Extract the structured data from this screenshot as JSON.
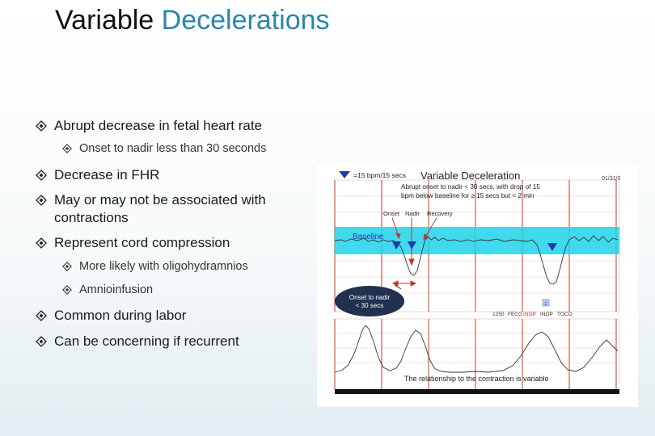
{
  "slide": {
    "title_part1": "Variable ",
    "title_part2": "Decelerations",
    "bullets": [
      {
        "level": 1,
        "text": "Abrupt decrease in fetal heart rate"
      },
      {
        "level": 2,
        "text": "Onset to nadir less than 30 seconds"
      },
      {
        "level": 1,
        "text": "Decrease in FHR"
      },
      {
        "level": 1,
        "text": "May or may not be associated with"
      },
      {
        "level": 1,
        "text": "contractions",
        "continuation": true
      },
      {
        "level": 1,
        "text": "Represent cord compression"
      },
      {
        "level": 2,
        "text": "More likely with oligohydramnios"
      },
      {
        "level": 2,
        "text": "Amnioinfusion"
      },
      {
        "level": 1,
        "text": "Common during labor"
      },
      {
        "level": 1,
        "text": "Can be concerning if recurrent"
      }
    ]
  },
  "figure": {
    "scale_label": "=15 bpm/15 secs",
    "title": "Variable Deceleration",
    "date": "01/31/0",
    "note_line1": "Abrupt onset to nadir < 30 secs, with drop of 15",
    "note_line2": "bpm below baseline for ≥ 15 secs but < 2 min",
    "label_onset": "Onset",
    "label_nadir": "Nadir",
    "label_recovery": "Recovery",
    "baseline_label": "Baseline",
    "callout_line1": "Onset to nadir",
    "callout_line2": "< 30 secs",
    "marker_number": "1",
    "strip_info": [
      "1250",
      "FECG",
      "INOP",
      "INOP",
      "TOCO"
    ],
    "caption": "The relationship to the contraction is variable",
    "colors": {
      "accent": "#2a86a8",
      "baseline_band": "#1fd3ea",
      "grid_red": "#d9453b",
      "marker_blue": "#1d3ea8"
    }
  }
}
